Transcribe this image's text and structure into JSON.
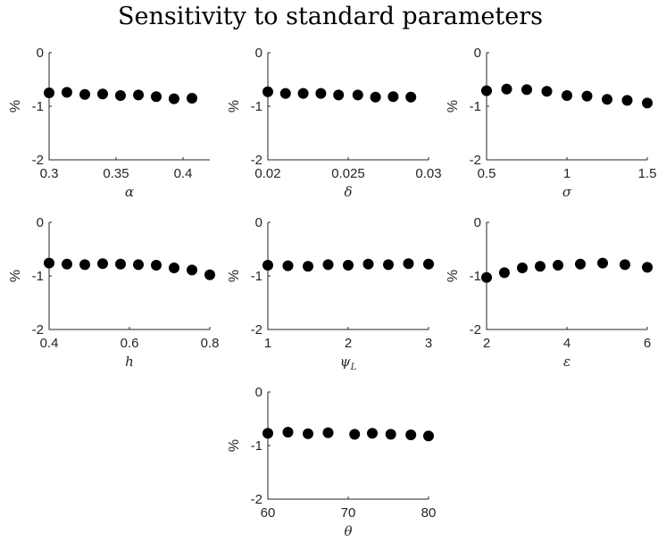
{
  "figure": {
    "title": "Sensitivity to standard parameters"
  },
  "chart_data": [
    {
      "type": "scatter",
      "xlabel": "α",
      "ylabel": "%",
      "xlim": [
        0.3,
        0.42
      ],
      "ylim": [
        -2,
        0
      ],
      "xticks": [
        "0.3",
        "0.35",
        "0.4"
      ],
      "yticks": [
        "0",
        "-1",
        "-2"
      ],
      "x": [
        0.3,
        0.3133,
        0.3267,
        0.34,
        0.3533,
        0.3667,
        0.38,
        0.3933,
        0.4067
      ],
      "y": [
        -0.75,
        -0.74,
        -0.78,
        -0.77,
        -0.8,
        -0.79,
        -0.82,
        -0.86,
        -0.85
      ],
      "marker_color": "#000000"
    },
    {
      "type": "scatter",
      "xlabel": "δ",
      "ylabel": "%",
      "xlim": [
        0.02,
        0.03
      ],
      "ylim": [
        -2,
        0
      ],
      "xticks": [
        "0.02",
        "0.025",
        "0.03"
      ],
      "yticks": [
        "0",
        "-1",
        "-2"
      ],
      "x": [
        0.02,
        0.0211,
        0.0222,
        0.0233,
        0.0244,
        0.0256,
        0.0267,
        0.0278,
        0.0289
      ],
      "y": [
        -0.73,
        -0.76,
        -0.76,
        -0.76,
        -0.79,
        -0.79,
        -0.83,
        -0.82,
        -0.83
      ],
      "marker_color": "#000000"
    },
    {
      "type": "scatter",
      "xlabel": "σ",
      "ylabel": "%",
      "xlim": [
        0.5,
        1.5
      ],
      "ylim": [
        -2,
        0
      ],
      "xticks": [
        "0.5",
        "1",
        "1.5"
      ],
      "yticks": [
        "0",
        "-1",
        "-2"
      ],
      "x": [
        0.5,
        0.625,
        0.75,
        0.875,
        1.0,
        1.125,
        1.25,
        1.375,
        1.5
      ],
      "y": [
        -0.71,
        -0.68,
        -0.69,
        -0.72,
        -0.8,
        -0.81,
        -0.87,
        -0.89,
        -0.94
      ],
      "marker_color": "#000000"
    },
    {
      "type": "scatter",
      "xlabel": "h",
      "ylabel": "%",
      "xlim": [
        0.4,
        0.8
      ],
      "ylim": [
        -2,
        0
      ],
      "xticks": [
        "0.4",
        "0.6",
        "0.8"
      ],
      "yticks": [
        "0",
        "-1",
        "-2"
      ],
      "x": [
        0.4,
        0.4444,
        0.4889,
        0.5333,
        0.5778,
        0.6222,
        0.6667,
        0.7111,
        0.7556,
        0.8
      ],
      "y": [
        -0.76,
        -0.78,
        -0.79,
        -0.77,
        -0.78,
        -0.79,
        -0.8,
        -0.85,
        -0.89,
        -0.98
      ],
      "marker_color": "#000000"
    },
    {
      "type": "scatter",
      "xlabel": "ψ_L",
      "ylabel": "%",
      "xlim": [
        1,
        3
      ],
      "ylim": [
        -2,
        0
      ],
      "xticks": [
        "1",
        "2",
        "3"
      ],
      "yticks": [
        "0",
        "-1",
        "-2"
      ],
      "x": [
        1.0,
        1.25,
        1.5,
        1.75,
        2.0,
        2.25,
        2.5,
        2.75,
        3.0
      ],
      "y": [
        -0.8,
        -0.81,
        -0.82,
        -0.79,
        -0.8,
        -0.78,
        -0.79,
        -0.77,
        -0.78
      ],
      "marker_color": "#000000"
    },
    {
      "type": "scatter",
      "xlabel": "ε",
      "ylabel": "%",
      "xlim": [
        2,
        6
      ],
      "ylim": [
        -2,
        0
      ],
      "xticks": [
        "2",
        "4",
        "6"
      ],
      "yticks": [
        "0",
        "-1",
        "-2"
      ],
      "x": [
        2.0,
        2.444,
        2.889,
        3.333,
        3.778,
        4.333,
        4.889,
        5.444,
        6.0
      ],
      "y": [
        -1.03,
        -0.94,
        -0.85,
        -0.82,
        -0.8,
        -0.78,
        -0.76,
        -0.79,
        -0.84
      ],
      "marker_color": "#000000"
    },
    {
      "type": "scatter",
      "xlabel": "θ",
      "ylabel": "%",
      "xlim": [
        60,
        80
      ],
      "ylim": [
        -2,
        0
      ],
      "xticks": [
        "60",
        "70",
        "80"
      ],
      "yticks": [
        "0",
        "-1",
        "-2"
      ],
      "x": [
        60.0,
        62.5,
        65.0,
        67.5,
        70.8,
        73.0,
        75.3,
        77.8,
        80.0
      ],
      "y": [
        -0.77,
        -0.75,
        -0.78,
        -0.76,
        -0.79,
        -0.77,
        -0.79,
        -0.8,
        -0.82
      ],
      "marker_color": "#000000"
    }
  ]
}
